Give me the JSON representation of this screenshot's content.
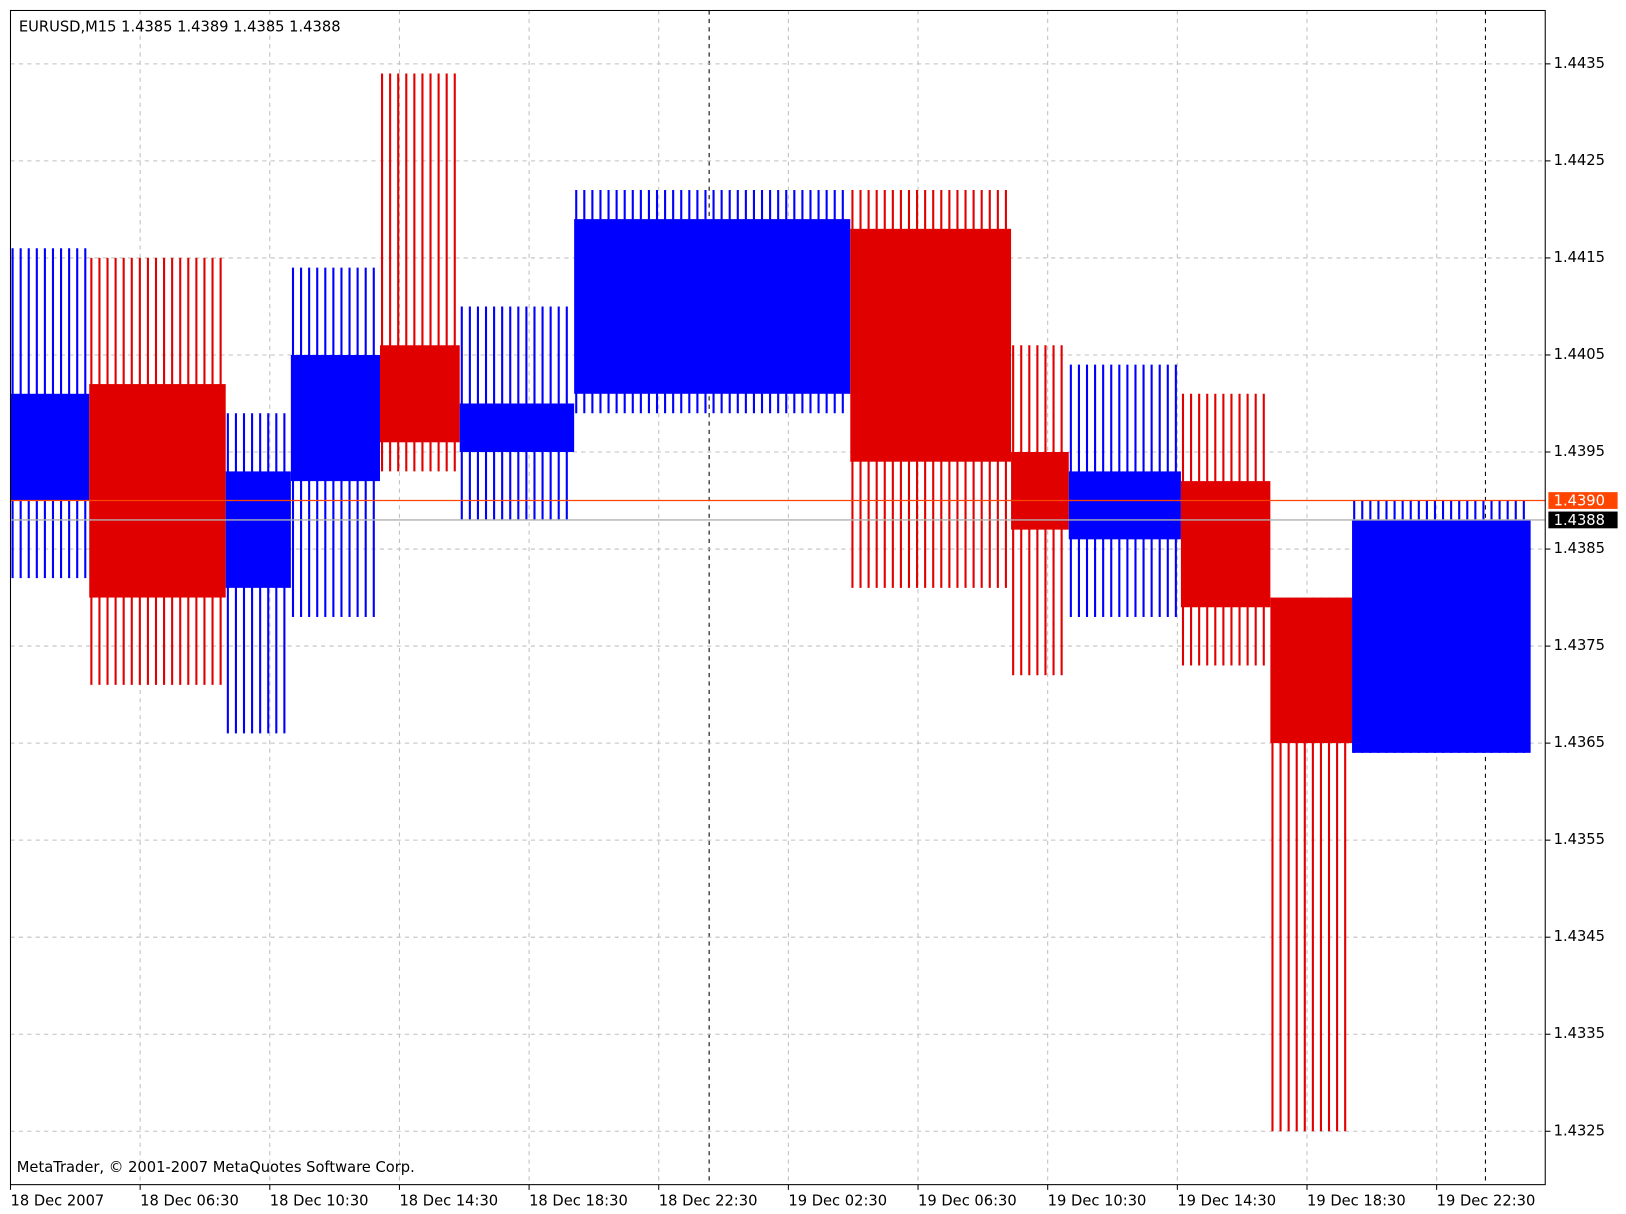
{
  "chart_data": {
    "type": "boxes",
    "header": "EURUSD,M15  1.4385 1.4389 1.4385 1.4388",
    "footer": "MetaTrader, © 2001-2007 MetaQuotes Software Corp.",
    "xlim": [
      2.5,
      49.85
    ],
    "xticks": [
      {
        "value": 2.5,
        "label": "18 Dec 2007"
      },
      {
        "value": 6.5,
        "label": "18 Dec 06:30"
      },
      {
        "value": 10.5,
        "label": "18 Dec 10:30"
      },
      {
        "value": 14.5,
        "label": "18 Dec 14:30"
      },
      {
        "value": 18.5,
        "label": "18 Dec 18:30"
      },
      {
        "value": 22.5,
        "label": "18 Dec 22:30"
      },
      {
        "value": 26.5,
        "label": "19 Dec 02:30"
      },
      {
        "value": 30.5,
        "label": "19 Dec 06:30"
      },
      {
        "value": 34.5,
        "label": "19 Dec 10:30"
      },
      {
        "value": 38.5,
        "label": "19 Dec 14:30"
      },
      {
        "value": 42.5,
        "label": "19 Dec 18:30"
      },
      {
        "value": 46.5,
        "label": "19 Dec 22:30"
      }
    ],
    "ylim": [
      1.43195,
      1.44405
    ],
    "yticks": [
      1.4435,
      1.4425,
      1.4415,
      1.4405,
      1.4395,
      1.4385,
      1.4375,
      1.4365,
      1.4355,
      1.4345,
      1.4335,
      1.4325
    ],
    "grid": true,
    "ask": {
      "value": 1.439,
      "label": "1.4390",
      "color": "#ff4500"
    },
    "bid": {
      "value": 1.4388,
      "label": "1.4388",
      "color": "#000000"
    },
    "boxes": [
      {
        "x0": 2.5,
        "x1": 4.93,
        "open": 1.439,
        "close": 1.4401,
        "high": 1.4416,
        "low": 1.4382,
        "color": "#0000ff"
      },
      {
        "x0": 4.93,
        "x1": 9.14,
        "open": 1.4402,
        "close": 1.438,
        "high": 1.4415,
        "low": 1.4371,
        "color": "#e00000"
      },
      {
        "x0": 9.14,
        "x1": 11.15,
        "open": 1.4381,
        "close": 1.4393,
        "high": 1.4399,
        "low": 1.4366,
        "color": "#0000ff"
      },
      {
        "x0": 11.15,
        "x1": 13.9,
        "open": 1.4392,
        "close": 1.4405,
        "high": 1.4414,
        "low": 1.4378,
        "color": "#0000ff"
      },
      {
        "x0": 13.9,
        "x1": 16.36,
        "open": 1.4406,
        "close": 1.4396,
        "high": 1.4434,
        "low": 1.4393,
        "color": "#e00000"
      },
      {
        "x0": 16.36,
        "x1": 19.89,
        "open": 1.4395,
        "close": 1.44,
        "high": 1.441,
        "low": 1.4388,
        "color": "#0000ff"
      },
      {
        "x0": 19.89,
        "x1": 28.41,
        "open": 1.4401,
        "close": 1.4419,
        "high": 1.4422,
        "low": 1.4399,
        "color": "#0000ff"
      },
      {
        "x0": 28.41,
        "x1": 33.37,
        "open": 1.4418,
        "close": 1.4394,
        "high": 1.4422,
        "low": 1.4381,
        "color": "#e00000"
      },
      {
        "x0": 33.37,
        "x1": 35.15,
        "open": 1.4395,
        "close": 1.4387,
        "high": 1.4406,
        "low": 1.4372,
        "color": "#e00000"
      },
      {
        "x0": 35.15,
        "x1": 38.61,
        "open": 1.4386,
        "close": 1.4393,
        "high": 1.4404,
        "low": 1.4378,
        "color": "#0000ff"
      },
      {
        "x0": 38.61,
        "x1": 41.37,
        "open": 1.4392,
        "close": 1.4379,
        "high": 1.4401,
        "low": 1.4373,
        "color": "#e00000"
      },
      {
        "x0": 41.37,
        "x1": 43.89,
        "open": 1.438,
        "close": 1.4365,
        "high": 1.438,
        "low": 1.4325,
        "color": "#e00000"
      },
      {
        "x0": 43.89,
        "x1": 49.4,
        "open": 1.4364,
        "close": 1.4388,
        "high": 1.439,
        "low": 1.4364,
        "color": "#0000ff"
      }
    ]
  }
}
